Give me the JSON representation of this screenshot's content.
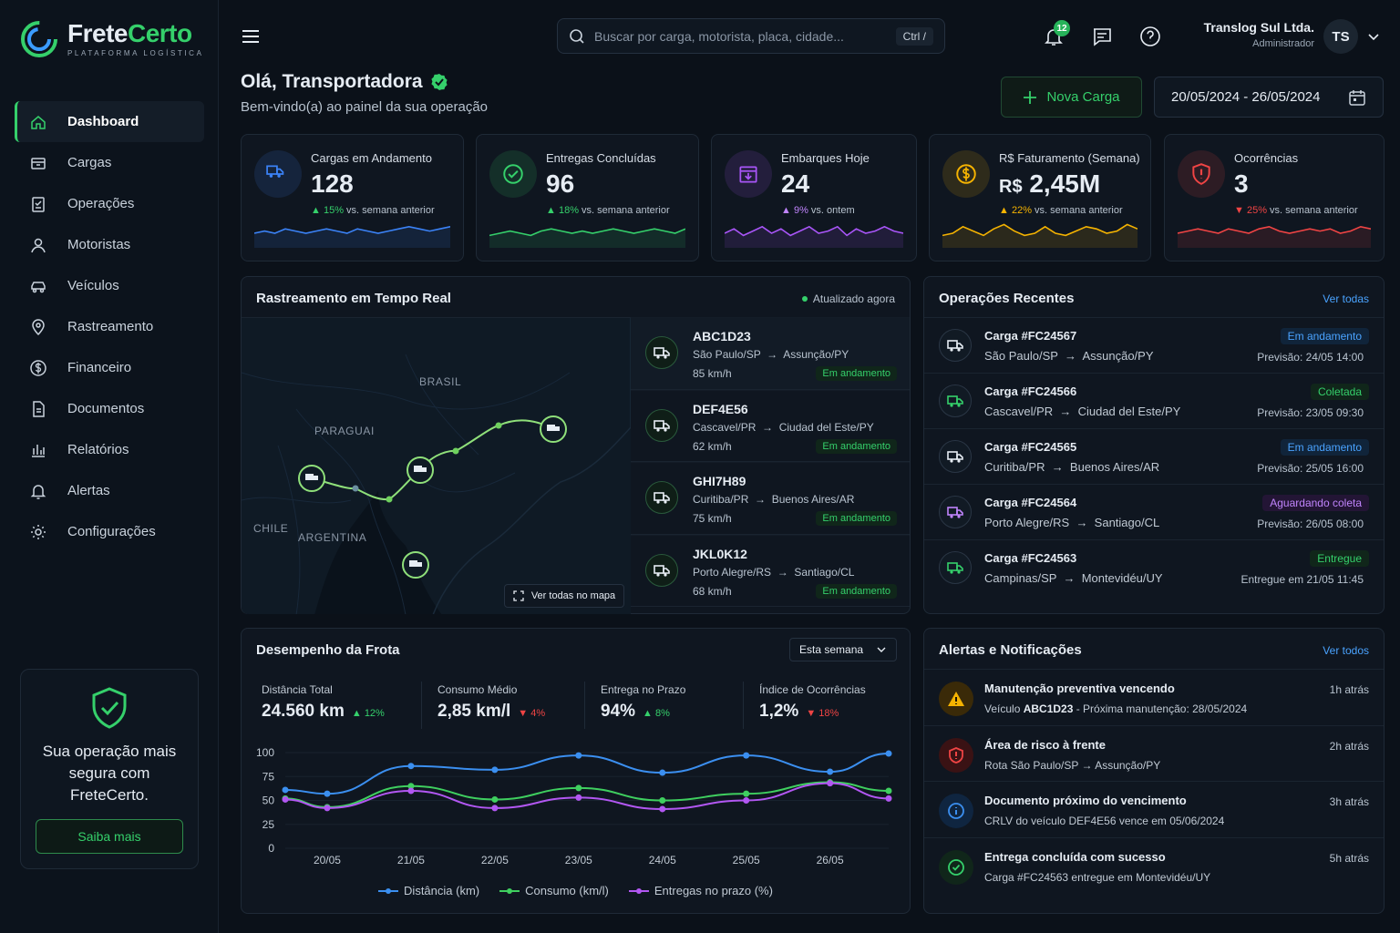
{
  "brand": {
    "name_part1": "Frete",
    "name_part2": "Certo",
    "subtitle": "PLATAFORMA LOGÍSTICA"
  },
  "nav": [
    {
      "label": "Dashboard",
      "icon": "home-icon"
    },
    {
      "label": "Cargas",
      "icon": "box-icon"
    },
    {
      "label": "Operações",
      "icon": "clipboard-icon"
    },
    {
      "label": "Motoristas",
      "icon": "user-icon"
    },
    {
      "label": "Veículos",
      "icon": "car-icon"
    },
    {
      "label": "Rastreamento",
      "icon": "map-pin-icon"
    },
    {
      "label": "Financeiro",
      "icon": "dollar-icon"
    },
    {
      "label": "Documentos",
      "icon": "document-icon"
    },
    {
      "label": "Relatórios",
      "icon": "bar-chart-icon"
    },
    {
      "label": "Alertas",
      "icon": "bell-icon"
    },
    {
      "label": "Configurações",
      "icon": "gear-icon"
    }
  ],
  "promo": {
    "text": "Sua operação mais segura com FreteCerto.",
    "button": "Saiba mais"
  },
  "search": {
    "placeholder": "Buscar por carga, motorista, placa, cidade...",
    "shortcut": "Ctrl  /"
  },
  "notifications": {
    "count": "12"
  },
  "user": {
    "company": "Translog Sul Ltda.",
    "role": "Administrador",
    "initials": "TS"
  },
  "greeting": {
    "title": "Olá, Transportadora",
    "subtitle": "Bem-vindo(a) ao painel da sua operação"
  },
  "actions": {
    "new_load": "Nova Carga",
    "date_range": "20/05/2024 - 26/05/2024"
  },
  "kpis": [
    {
      "label": "Cargas em Andamento",
      "value": "128",
      "currency": "",
      "trend": "15%",
      "trend_dir": "up",
      "trend_text": "vs. semana anterior",
      "color": "#3b82f6"
    },
    {
      "label": "Entregas Concluídas",
      "value": "96",
      "currency": "",
      "trend": "18%",
      "trend_dir": "up",
      "trend_text": "vs. semana anterior",
      "color": "#35d06b"
    },
    {
      "label": "Embarques Hoje",
      "value": "24",
      "currency": "",
      "trend": "9%",
      "trend_dir": "up",
      "trend_text": "vs. ontem",
      "color": "#a855f7"
    },
    {
      "label": "R$ Faturamento (Semana)",
      "value": "2,45M",
      "currency": "R$",
      "trend": "22%",
      "trend_dir": "up",
      "trend_text": "vs. semana anterior",
      "color": "#f5b301"
    },
    {
      "label": "Ocorrências",
      "value": "3",
      "currency": "",
      "trend": "25%",
      "trend_dir": "down",
      "trend_text": "vs. semana anterior",
      "color": "#ef4444"
    }
  ],
  "tracking": {
    "title": "Rastreamento em Tempo Real",
    "updated": "Atualizado agora",
    "map_labels": [
      "BRASIL",
      "PARAGUAI",
      "CHILE",
      "ARGENTINA"
    ],
    "map_button": "Ver todas no mapa",
    "vehicles": [
      {
        "plate": "ABC1D23",
        "from": "São Paulo/SP",
        "to": "Assunção/PY",
        "speed": "85 km/h",
        "status": "Em andamento"
      },
      {
        "plate": "DEF4E56",
        "from": "Cascavel/PR",
        "to": "Ciudad del Este/PY",
        "speed": "62 km/h",
        "status": "Em andamento"
      },
      {
        "plate": "GHI7H89",
        "from": "Curitiba/PR",
        "to": "Buenos Aires/AR",
        "speed": "75 km/h",
        "status": "Em andamento"
      },
      {
        "plate": "JKL0K12",
        "from": "Porto Alegre/RS",
        "to": "Santiago/CL",
        "speed": "68 km/h",
        "status": "Em andamento"
      }
    ]
  },
  "operations": {
    "title": "Operações Recentes",
    "link": "Ver todas",
    "items": [
      {
        "title": "Carga #FC24567",
        "from": "São Paulo/SP",
        "to": "Assunção/PY",
        "status": "Em andamento",
        "status_color": "#4aa3ff",
        "status_bg": "#10243a",
        "eta": "Previsão: 24/05 14:00"
      },
      {
        "title": "Carga #FC24566",
        "from": "Cascavel/PR",
        "to": "Ciudad del Este/PY",
        "status": "Coletada",
        "status_color": "#35d06b",
        "status_bg": "#10261a",
        "eta": "Previsão: 23/05 09:30"
      },
      {
        "title": "Carga #FC24565",
        "from": "Curitiba/PR",
        "to": "Buenos Aires/AR",
        "status": "Em andamento",
        "status_color": "#4aa3ff",
        "status_bg": "#10243a",
        "eta": "Previsão: 25/05 16:00"
      },
      {
        "title": "Carga #FC24564",
        "from": "Porto Alegre/RS",
        "to": "Santiago/CL",
        "status": "Aguardando coleta",
        "status_color": "#c084fc",
        "status_bg": "#231535",
        "eta": "Previsão: 26/05 08:00"
      },
      {
        "title": "Carga #FC24563",
        "from": "Campinas/SP",
        "to": "Montevidéu/UY",
        "status": "Entregue",
        "status_color": "#35d06b",
        "status_bg": "#10261a",
        "eta": "Entregue em 21/05 11:45"
      }
    ]
  },
  "fleet": {
    "title": "Desempenho da Frota",
    "period": "Esta semana",
    "metrics": [
      {
        "label": "Distância Total",
        "value": "24.560 km",
        "trend": "12%",
        "dir": "up"
      },
      {
        "label": "Consumo Médio",
        "value": "2,85 km/l",
        "trend": "4%",
        "dir": "down"
      },
      {
        "label": "Entrega no Prazo",
        "value": "94%",
        "trend": "8%",
        "dir": "up"
      },
      {
        "label": "Índice de Ocorrências",
        "value": "1,2%",
        "trend": "18%",
        "dir": "down"
      }
    ]
  },
  "chart_data": {
    "type": "line",
    "categories": [
      "20/05",
      "21/05",
      "22/05",
      "23/05",
      "24/05",
      "25/05",
      "26/05"
    ],
    "yticks": [
      0,
      25,
      50,
      75,
      100
    ],
    "ylim": [
      0,
      100
    ],
    "series": [
      {
        "name": "Distância (km)",
        "color": "#3b8ff0",
        "x": [
          19.5,
          20,
          21,
          22,
          23,
          24,
          25,
          26,
          26.7
        ],
        "values": [
          61,
          57,
          86,
          82,
          97,
          79,
          97,
          80,
          99
        ]
      },
      {
        "name": "Consumo (km/l)",
        "color": "#3fcf5f",
        "x": [
          19.5,
          20,
          21,
          22,
          23,
          24,
          25,
          26,
          26.7
        ],
        "values": [
          52,
          43,
          65,
          51,
          63,
          50,
          57,
          69,
          60
        ]
      },
      {
        "name": "Entregas no prazo (%)",
        "color": "#b257f2",
        "x": [
          19.5,
          20,
          21,
          22,
          23,
          24,
          25,
          26,
          26.7
        ],
        "values": [
          51,
          42,
          60,
          42,
          53,
          41,
          50,
          68,
          52
        ]
      }
    ]
  },
  "alerts": {
    "title": "Alertas e Notificações",
    "link": "Ver todos",
    "items": [
      {
        "title": "Manutenção preventiva vencendo",
        "desc_pre": "Veículo ",
        "desc_strong": "ABC1D23",
        "desc_post": " - Próxima manutenção: 28/05/2024",
        "time": "1h atrás",
        "icon": "warning-icon"
      },
      {
        "title": "Área de risco à frente",
        "desc_pre": "Rota São Paulo/SP → Assunção/PY",
        "desc_strong": "",
        "desc_post": "",
        "time": "2h atrás",
        "icon": "shield-alert-icon"
      },
      {
        "title": "Documento próximo do vencimento",
        "desc_pre": "CRLV do veículo DEF4E56 vence em 05/06/2024",
        "desc_strong": "",
        "desc_post": "",
        "time": "3h atrás",
        "icon": "info-icon"
      },
      {
        "title": "Entrega concluída com sucesso",
        "desc_pre": "Carga #FC24563 entregue em Montevidéu/UY",
        "desc_strong": "",
        "desc_post": "",
        "time": "5h atrás",
        "icon": "check-circle-icon"
      }
    ]
  }
}
